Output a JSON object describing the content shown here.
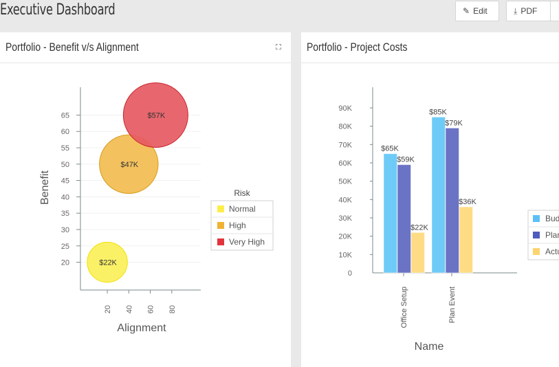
{
  "header": {
    "title": "Executive Dashboard",
    "edit_label": "Edit",
    "pdf_label": "PDF"
  },
  "panels": [
    {
      "title": "Portfolio - Benefit v/s Alignment"
    },
    {
      "title": "Portfolio - Project Costs"
    }
  ],
  "chart_data": [
    {
      "type": "bubble",
      "xlabel": "Alignment",
      "ylabel": "Benefit",
      "xticks": [
        20,
        40,
        60,
        80
      ],
      "yticks": [
        20,
        25,
        30,
        35,
        40,
        45,
        50,
        55,
        60,
        65
      ],
      "xlim": [
        -5,
        107
      ],
      "ylim": [
        11.5,
        73.5
      ],
      "legend": {
        "title": "Risk",
        "position": "right",
        "items": [
          {
            "name": "Normal",
            "color": "#fcee4a"
          },
          {
            "name": "High",
            "color": "#f0b233"
          },
          {
            "name": "Very High",
            "color": "#e2343c"
          }
        ]
      },
      "points": [
        {
          "x": 20,
          "y": 20,
          "size": 22,
          "label": "$22K",
          "risk": "Normal",
          "fill": "#fbf05a",
          "stroke": "#f3df00"
        },
        {
          "x": 40,
          "y": 50,
          "size": 47,
          "label": "$47K",
          "risk": "High",
          "fill": "#f2bd50",
          "stroke": "#d99a1a"
        },
        {
          "x": 65,
          "y": 65,
          "size": 57,
          "label": "$57K",
          "risk": "Very High",
          "fill": "#e65a62",
          "stroke": "#c9252e"
        }
      ]
    },
    {
      "type": "bar",
      "xlabel": "Name",
      "ylabel": "",
      "categories": [
        "Office Setup",
        "Plan Event"
      ],
      "ylim": [
        0,
        100000
      ],
      "yticks": [
        "0",
        "10K",
        "20K",
        "30K",
        "40K",
        "50K",
        "60K",
        "70K",
        "80K",
        "90K"
      ],
      "legend_position": "right",
      "series": [
        {
          "name": "Budget",
          "values": [
            65000,
            85000
          ],
          "labels": [
            "$65K",
            "$85K"
          ],
          "color": "#6ecbf7",
          "swatch": "#5bc0f5"
        },
        {
          "name": "Planned",
          "values": [
            59000,
            79000
          ],
          "labels": [
            "$59K",
            "$79K"
          ],
          "color": "#6b73c4",
          "swatch": "#4f5bbd"
        },
        {
          "name": "Actual",
          "values": [
            22000,
            36000
          ],
          "labels": [
            "$22K",
            "$36K"
          ],
          "color": "#fedc85",
          "swatch": "#fdd46e"
        }
      ]
    }
  ]
}
